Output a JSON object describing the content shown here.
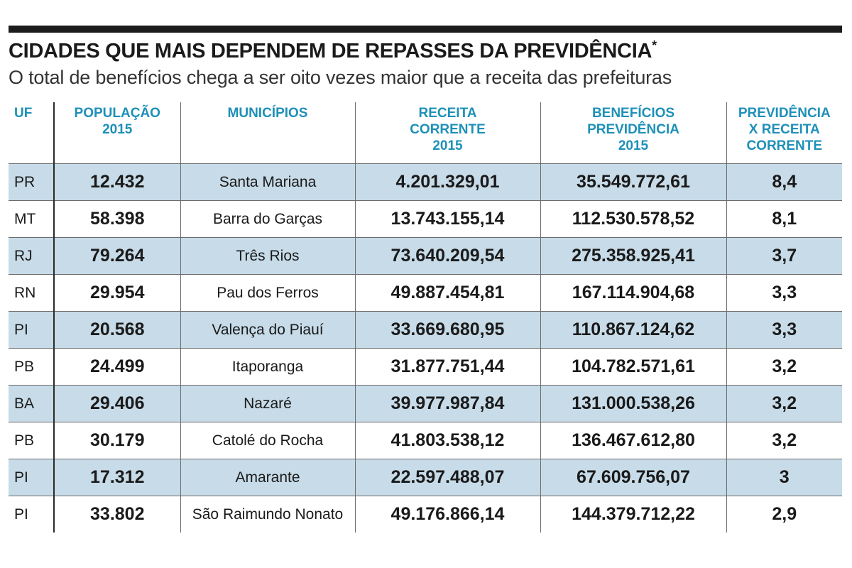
{
  "chart_data": {
    "type": "table",
    "title": "CIDADES QUE MAIS DEPENDEM DE REPASSES DA PREVIDÊNCIA",
    "title_mark": "*",
    "subtitle": "O total de benefícios chega a ser oito vezes maior que a receita das prefeituras",
    "columns": [
      [
        "UF"
      ],
      [
        "POPULAÇÃO",
        "2015"
      ],
      [
        "MUNICÍPIOS"
      ],
      [
        "RECEITA",
        "CORRENTE",
        "2015"
      ],
      [
        "BENEFÍCIOS",
        "PREVIDÊNCIA",
        "2015"
      ],
      [
        "PREVIDÊNCIA",
        "X RECEITA",
        "CORRENTE"
      ]
    ],
    "rows": [
      [
        "PR",
        "12.432",
        "Santa Mariana",
        "4.201.329,01",
        "35.549.772,61",
        "8,4"
      ],
      [
        "MT",
        "58.398",
        "Barra do Garças",
        "13.743.155,14",
        "112.530.578,52",
        "8,1"
      ],
      [
        "RJ",
        "79.264",
        "Três Rios",
        "73.640.209,54",
        "275.358.925,41",
        "3,7"
      ],
      [
        "RN",
        "29.954",
        "Pau dos Ferros",
        "49.887.454,81",
        "167.114.904,68",
        "3,3"
      ],
      [
        "PI",
        "20.568",
        "Valença do Piauí",
        "33.669.680,95",
        "110.867.124,62",
        "3,3"
      ],
      [
        "PB",
        "24.499",
        "Itaporanga",
        "31.877.751,44",
        "104.782.571,61",
        "3,2"
      ],
      [
        "BA",
        "29.406",
        "Nazaré",
        "39.977.987,84",
        "131.000.538,26",
        "3,2"
      ],
      [
        "PB",
        "30.179",
        "Catolé do Rocha",
        "41.803.538,12",
        "136.467.612,80",
        "3,2"
      ],
      [
        "PI",
        "17.312",
        "Amarante",
        "22.597.488,07",
        "67.609.756,07",
        "3"
      ],
      [
        "PI",
        "33.802",
        "São Raimundo Nonato",
        "49.176.866,14",
        "144.379.712,22",
        "2,9"
      ]
    ]
  },
  "colors": {
    "header_text": "#1e90b8",
    "row_stripe": "#c7dbe8",
    "top_bar": "#1c1c1c"
  }
}
